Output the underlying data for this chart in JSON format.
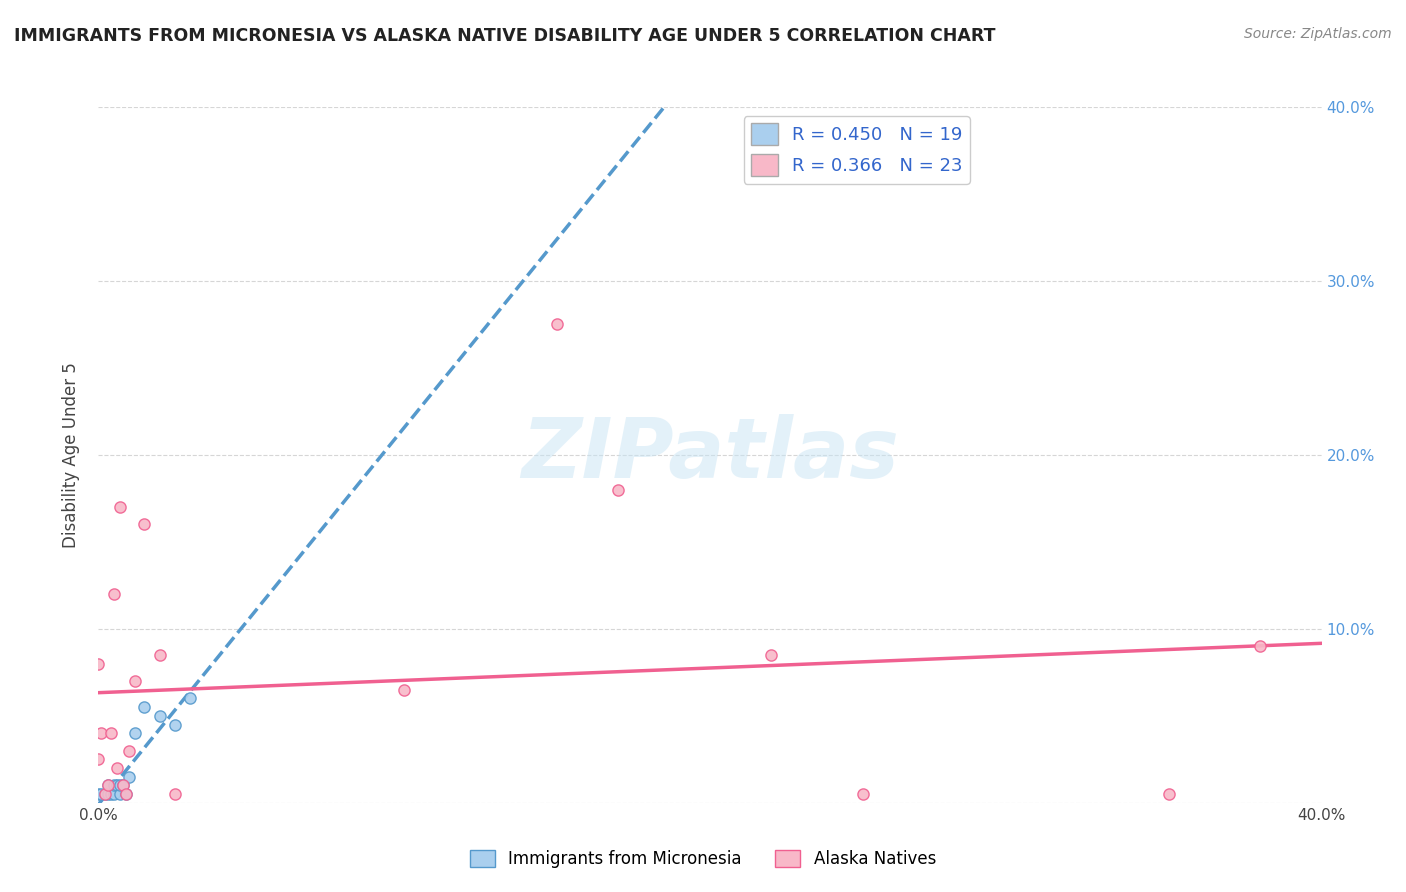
{
  "title": "IMMIGRANTS FROM MICRONESIA VS ALASKA NATIVE DISABILITY AGE UNDER 5 CORRELATION CHART",
  "source": "Source: ZipAtlas.com",
  "ylabel": "Disability Age Under 5",
  "xlim": [
    0.0,
    0.4
  ],
  "ylim": [
    0.0,
    0.4
  ],
  "legend_r1": "R = 0.450",
  "legend_n1": "N = 19",
  "legend_r2": "R = 0.366",
  "legend_n2": "N = 23",
  "watermark": "ZIPatlas",
  "series1_color": "#aacfee",
  "series2_color": "#f8b8c8",
  "line1_color": "#5599cc",
  "line2_color": "#f06090",
  "series1_x": [
    0.0,
    0.001,
    0.002,
    0.003,
    0.003,
    0.004,
    0.005,
    0.005,
    0.006,
    0.007,
    0.007,
    0.008,
    0.009,
    0.01,
    0.012,
    0.015,
    0.02,
    0.025,
    0.03
  ],
  "series1_y": [
    0.005,
    0.005,
    0.005,
    0.005,
    0.01,
    0.005,
    0.005,
    0.01,
    0.01,
    0.005,
    0.01,
    0.01,
    0.005,
    0.015,
    0.04,
    0.055,
    0.05,
    0.045,
    0.06
  ],
  "series2_x": [
    0.0,
    0.0,
    0.001,
    0.002,
    0.003,
    0.004,
    0.005,
    0.006,
    0.007,
    0.008,
    0.009,
    0.01,
    0.012,
    0.015,
    0.02,
    0.025,
    0.1,
    0.15,
    0.17,
    0.22,
    0.25,
    0.35,
    0.38
  ],
  "series2_y": [
    0.025,
    0.08,
    0.04,
    0.005,
    0.01,
    0.04,
    0.12,
    0.02,
    0.17,
    0.01,
    0.005,
    0.03,
    0.07,
    0.16,
    0.085,
    0.005,
    0.065,
    0.275,
    0.18,
    0.085,
    0.005,
    0.005,
    0.09
  ]
}
